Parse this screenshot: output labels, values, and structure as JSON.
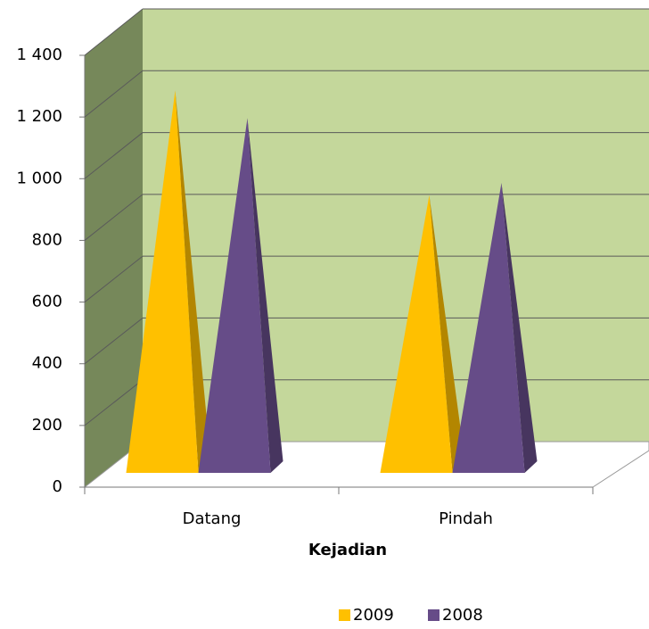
{
  "chart_data": {
    "type": "pyramid3d",
    "x_label": "Kejadian",
    "categories": [
      "Datang",
      "Pindah"
    ],
    "series": [
      {
        "name": "2009",
        "color": "#FFC000",
        "values": [
          1240,
          900
        ]
      },
      {
        "name": "2008",
        "color": "#664C88",
        "values": [
          1150,
          940
        ]
      }
    ],
    "ylim": [
      0,
      1400
    ],
    "yticks": [
      0,
      200,
      400,
      600,
      800,
      {
        "value": 1000,
        "label": "1 000"
      },
      {
        "value": 1200,
        "label": "1 200"
      },
      {
        "value": 1400,
        "label": "1 400"
      }
    ],
    "grid": true,
    "legend": "bottom"
  }
}
